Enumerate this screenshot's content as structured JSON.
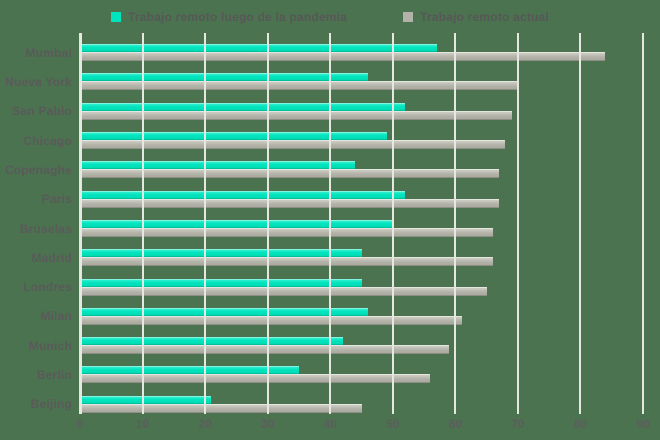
{
  "colors": {
    "background": "#4b7350",
    "series_post_pandemic": "#00e4bd",
    "series_current": "#b2b2a8",
    "gridline": "#e4e8e1",
    "text": "#5a5a5a"
  },
  "chart_data": {
    "type": "bar",
    "orientation": "horizontal",
    "title": "",
    "xlabel": "",
    "ylabel": "",
    "xlim": [
      0,
      90
    ],
    "xticks": [
      0,
      10,
      20,
      30,
      40,
      50,
      60,
      70,
      80,
      90
    ],
    "grid": true,
    "legend_position": "top-center",
    "categories": [
      "Mumbai",
      "Nueva York",
      "San Pablo",
      "Chicago",
      "Copenaghe",
      "Paris",
      "Bruselas",
      "Madrid",
      "Londres",
      "Milan",
      "Munich",
      "Berlin",
      "Beijing"
    ],
    "series": [
      {
        "name": "Trabajo remoto luego de la pandemia",
        "color": "#00e4bd",
        "values": [
          57,
          46,
          52,
          49,
          44,
          52,
          50,
          45,
          45,
          46,
          42,
          35,
          21
        ]
      },
      {
        "name": "Trabajo remoto actual",
        "color": "#b2b2a8",
        "values": [
          84,
          70,
          69,
          68,
          67,
          67,
          66,
          66,
          65,
          61,
          59,
          56,
          45
        ]
      }
    ]
  }
}
